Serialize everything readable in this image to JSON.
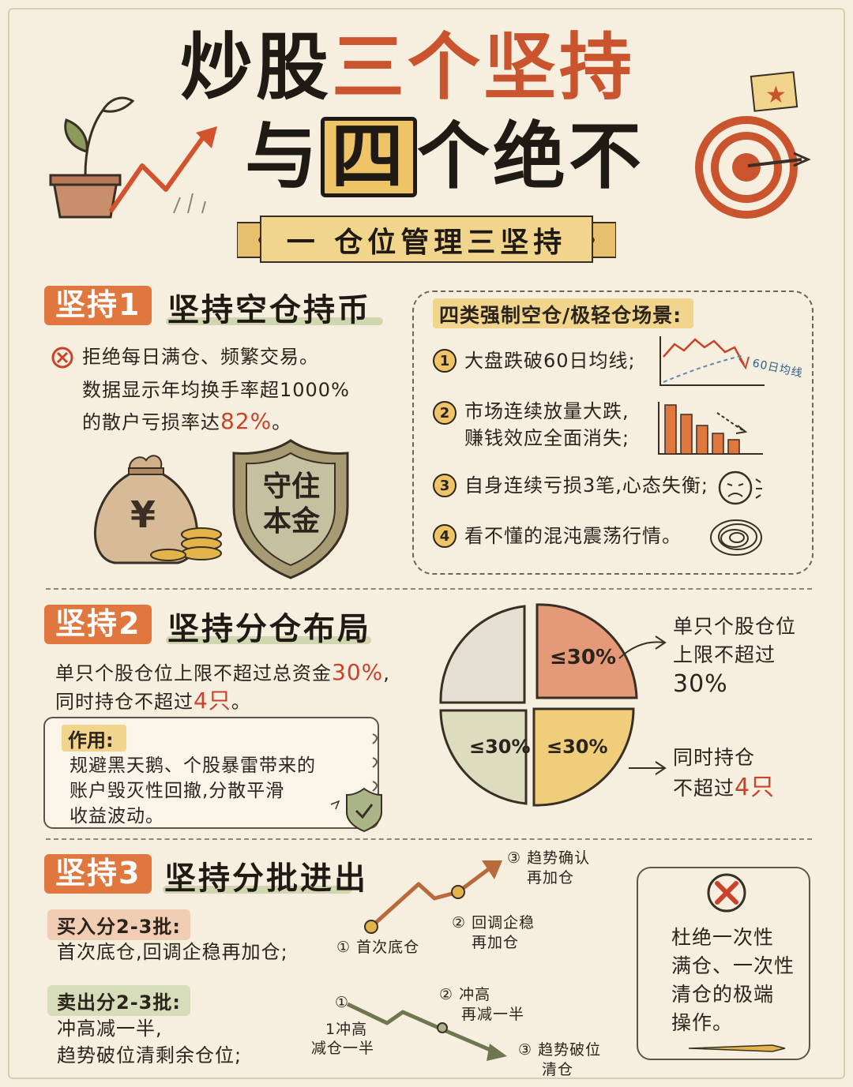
{
  "title": {
    "line1_a": "炒股",
    "line1_b": "三个坚持",
    "line2_a": "与",
    "line2_box": "四",
    "line2_b": "个绝不"
  },
  "banner": "一  仓位管理三坚持",
  "section1": {
    "tag": "坚持1",
    "heading": "坚持空仓持币",
    "line1": "拒绝每日满仓、频繁交易。",
    "line2": "数据显示年均换手率超1000%",
    "line3_a": "的散户亏损率达",
    "line3_b": "82%",
    "line3_c": "。",
    "shield_line1": "守住",
    "shield_line2": "本金",
    "bag_symbol": "¥"
  },
  "scenarios": {
    "title": "四类强制空仓/极轻仓场景:",
    "items": [
      {
        "num": "1",
        "line1": "大盘跌破60日均线;",
        "line2": ""
      },
      {
        "num": "2",
        "line1": "市场连续放量大跌,",
        "line2": "赚钱效应全面消失;"
      },
      {
        "num": "3",
        "line1": "自身连续亏损3笔,心态失衡;",
        "line2": ""
      },
      {
        "num": "4",
        "line1": "看不懂的混沌震荡行情。",
        "line2": ""
      }
    ],
    "chart_label": "60日均线"
  },
  "section2": {
    "tag": "坚持2",
    "heading": "坚持分仓布局",
    "line1_a": "单只个股仓位上限不超过总资金",
    "line1_b": "30%",
    "line1_c": ",",
    "line2_a": "同时持仓不超过",
    "line2_b": "4只",
    "line2_c": "。",
    "note_label": "作用:",
    "note_line1": "规避黑天鹅、个股暴雷带来的",
    "note_line2": "账户毁灭性回撤,分散平滑",
    "note_line3": "收益波动。",
    "pie_labels": [
      "≤30%",
      "≤30%",
      "≤30%"
    ],
    "callout1_a": "单只个股仓位",
    "callout1_b": "上限不超过",
    "callout1_c": "30%",
    "callout2_a": "同时持仓",
    "callout2_b": "不超过",
    "callout2_c": "4只"
  },
  "section3": {
    "tag": "坚持3",
    "heading": "坚持分批进出",
    "buy_label": "买入分2-3批:",
    "buy_text": "首次底仓,回调企稳再加仓;",
    "sell_label": "卖出分2-3批:",
    "sell_line1": "冲高减一半,",
    "sell_line2": "趋势破位清剩余仓位;",
    "buy_step1": "① 首次底仓",
    "buy_step2_a": "② 回调企稳",
    "buy_step2_b": "再加仓",
    "buy_step3_a": "③ 趋势确认",
    "buy_step3_b": "再加仓",
    "sell_step1_num": "①",
    "sell_step1_a": "1冲高",
    "sell_step1_b": "减仓一半",
    "sell_step2_a": "② 冲高",
    "sell_step2_b": "再减一半",
    "sell_step3_a": "③ 趋势破位",
    "sell_step3_b": "清仓",
    "warn_line1": "杜绝一次性",
    "warn_line2": "满仓、一次性",
    "warn_line3": "清仓的极端",
    "warn_line4": "操作。"
  },
  "colors": {
    "accent_orange": "#e0773e",
    "accent_red": "#c9432a",
    "highlight_yellow": "#f2d58c",
    "paper": "#f6efdf",
    "pie_red": "#e49a79",
    "pie_yellow": "#f0cd7a",
    "pie_green": "#dcdcbf",
    "pie_gray": "#e5e0d2"
  }
}
